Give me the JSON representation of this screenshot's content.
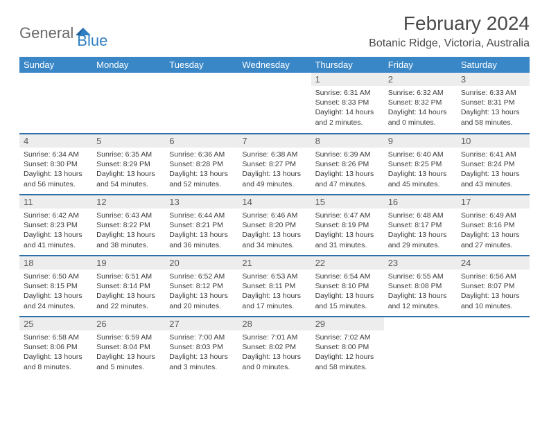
{
  "logo": {
    "part1": "General",
    "part2": "Blue"
  },
  "title": "February 2024",
  "location": "Botanic Ridge, Victoria, Australia",
  "colors": {
    "header_bg": "#3a87c7",
    "row_divider": "#2f6fa8",
    "daynum_bg": "#ededed",
    "logo_accent": "#2f7fc2",
    "text": "#3a3a3a"
  },
  "fonts": {
    "title_size": 28,
    "location_size": 16,
    "dayhead_size": 13,
    "body_size": 10.5
  },
  "day_headers": [
    "Sunday",
    "Monday",
    "Tuesday",
    "Wednesday",
    "Thursday",
    "Friday",
    "Saturday"
  ],
  "weeks": [
    [
      {
        "empty": true
      },
      {
        "empty": true
      },
      {
        "empty": true
      },
      {
        "empty": true
      },
      {
        "n": "1",
        "sunrise": "6:31 AM",
        "sunset": "8:33 PM",
        "daylight": "14 hours and 2 minutes."
      },
      {
        "n": "2",
        "sunrise": "6:32 AM",
        "sunset": "8:32 PM",
        "daylight": "14 hours and 0 minutes."
      },
      {
        "n": "3",
        "sunrise": "6:33 AM",
        "sunset": "8:31 PM",
        "daylight": "13 hours and 58 minutes."
      }
    ],
    [
      {
        "n": "4",
        "sunrise": "6:34 AM",
        "sunset": "8:30 PM",
        "daylight": "13 hours and 56 minutes."
      },
      {
        "n": "5",
        "sunrise": "6:35 AM",
        "sunset": "8:29 PM",
        "daylight": "13 hours and 54 minutes."
      },
      {
        "n": "6",
        "sunrise": "6:36 AM",
        "sunset": "8:28 PM",
        "daylight": "13 hours and 52 minutes."
      },
      {
        "n": "7",
        "sunrise": "6:38 AM",
        "sunset": "8:27 PM",
        "daylight": "13 hours and 49 minutes."
      },
      {
        "n": "8",
        "sunrise": "6:39 AM",
        "sunset": "8:26 PM",
        "daylight": "13 hours and 47 minutes."
      },
      {
        "n": "9",
        "sunrise": "6:40 AM",
        "sunset": "8:25 PM",
        "daylight": "13 hours and 45 minutes."
      },
      {
        "n": "10",
        "sunrise": "6:41 AM",
        "sunset": "8:24 PM",
        "daylight": "13 hours and 43 minutes."
      }
    ],
    [
      {
        "n": "11",
        "sunrise": "6:42 AM",
        "sunset": "8:23 PM",
        "daylight": "13 hours and 41 minutes."
      },
      {
        "n": "12",
        "sunrise": "6:43 AM",
        "sunset": "8:22 PM",
        "daylight": "13 hours and 38 minutes."
      },
      {
        "n": "13",
        "sunrise": "6:44 AM",
        "sunset": "8:21 PM",
        "daylight": "13 hours and 36 minutes."
      },
      {
        "n": "14",
        "sunrise": "6:46 AM",
        "sunset": "8:20 PM",
        "daylight": "13 hours and 34 minutes."
      },
      {
        "n": "15",
        "sunrise": "6:47 AM",
        "sunset": "8:19 PM",
        "daylight": "13 hours and 31 minutes."
      },
      {
        "n": "16",
        "sunrise": "6:48 AM",
        "sunset": "8:17 PM",
        "daylight": "13 hours and 29 minutes."
      },
      {
        "n": "17",
        "sunrise": "6:49 AM",
        "sunset": "8:16 PM",
        "daylight": "13 hours and 27 minutes."
      }
    ],
    [
      {
        "n": "18",
        "sunrise": "6:50 AM",
        "sunset": "8:15 PM",
        "daylight": "13 hours and 24 minutes."
      },
      {
        "n": "19",
        "sunrise": "6:51 AM",
        "sunset": "8:14 PM",
        "daylight": "13 hours and 22 minutes."
      },
      {
        "n": "20",
        "sunrise": "6:52 AM",
        "sunset": "8:12 PM",
        "daylight": "13 hours and 20 minutes."
      },
      {
        "n": "21",
        "sunrise": "6:53 AM",
        "sunset": "8:11 PM",
        "daylight": "13 hours and 17 minutes."
      },
      {
        "n": "22",
        "sunrise": "6:54 AM",
        "sunset": "8:10 PM",
        "daylight": "13 hours and 15 minutes."
      },
      {
        "n": "23",
        "sunrise": "6:55 AM",
        "sunset": "8:08 PM",
        "daylight": "13 hours and 12 minutes."
      },
      {
        "n": "24",
        "sunrise": "6:56 AM",
        "sunset": "8:07 PM",
        "daylight": "13 hours and 10 minutes."
      }
    ],
    [
      {
        "n": "25",
        "sunrise": "6:58 AM",
        "sunset": "8:06 PM",
        "daylight": "13 hours and 8 minutes."
      },
      {
        "n": "26",
        "sunrise": "6:59 AM",
        "sunset": "8:04 PM",
        "daylight": "13 hours and 5 minutes."
      },
      {
        "n": "27",
        "sunrise": "7:00 AM",
        "sunset": "8:03 PM",
        "daylight": "13 hours and 3 minutes."
      },
      {
        "n": "28",
        "sunrise": "7:01 AM",
        "sunset": "8:02 PM",
        "daylight": "13 hours and 0 minutes."
      },
      {
        "n": "29",
        "sunrise": "7:02 AM",
        "sunset": "8:00 PM",
        "daylight": "12 hours and 58 minutes."
      },
      {
        "empty": true
      },
      {
        "empty": true
      }
    ]
  ],
  "labels": {
    "sunrise": "Sunrise:",
    "sunset": "Sunset:",
    "daylight": "Daylight:"
  }
}
